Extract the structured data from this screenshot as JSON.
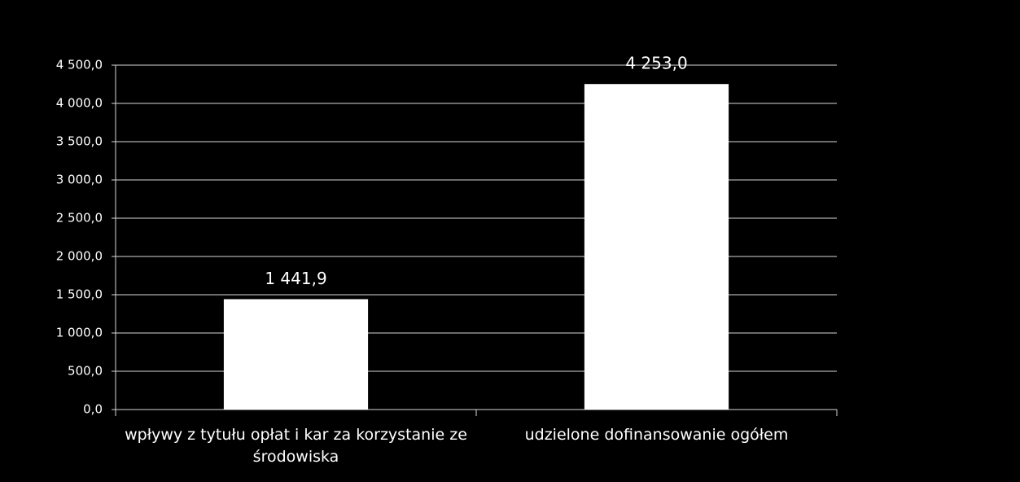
{
  "chart_data": {
    "type": "bar",
    "categories": [
      "wpływy z tytułu opłat i kar za korzystanie ze środowiska",
      "udzielone dofinansowanie ogółem"
    ],
    "values": [
      1441.9,
      4253.0
    ],
    "value_labels": [
      "1 441,9",
      "4 253,0"
    ],
    "color": "#ffffff",
    "ylim": [
      0,
      4500
    ],
    "yticks": [
      {
        "value": 0,
        "label": "0,0"
      },
      {
        "value": 500,
        "label": "500,0"
      },
      {
        "value": 1000,
        "label": "1 000,0"
      },
      {
        "value": 1500,
        "label": "1 500,0"
      },
      {
        "value": 2000,
        "label": "2 000,0"
      },
      {
        "value": 2500,
        "label": "2 500,0"
      },
      {
        "value": 3000,
        "label": "3 000,0"
      },
      {
        "value": 3500,
        "label": "3 500,0"
      },
      {
        "value": 4000,
        "label": "4 000,0"
      },
      {
        "value": 4500,
        "label": "4 500,0"
      }
    ],
    "grid": true
  }
}
